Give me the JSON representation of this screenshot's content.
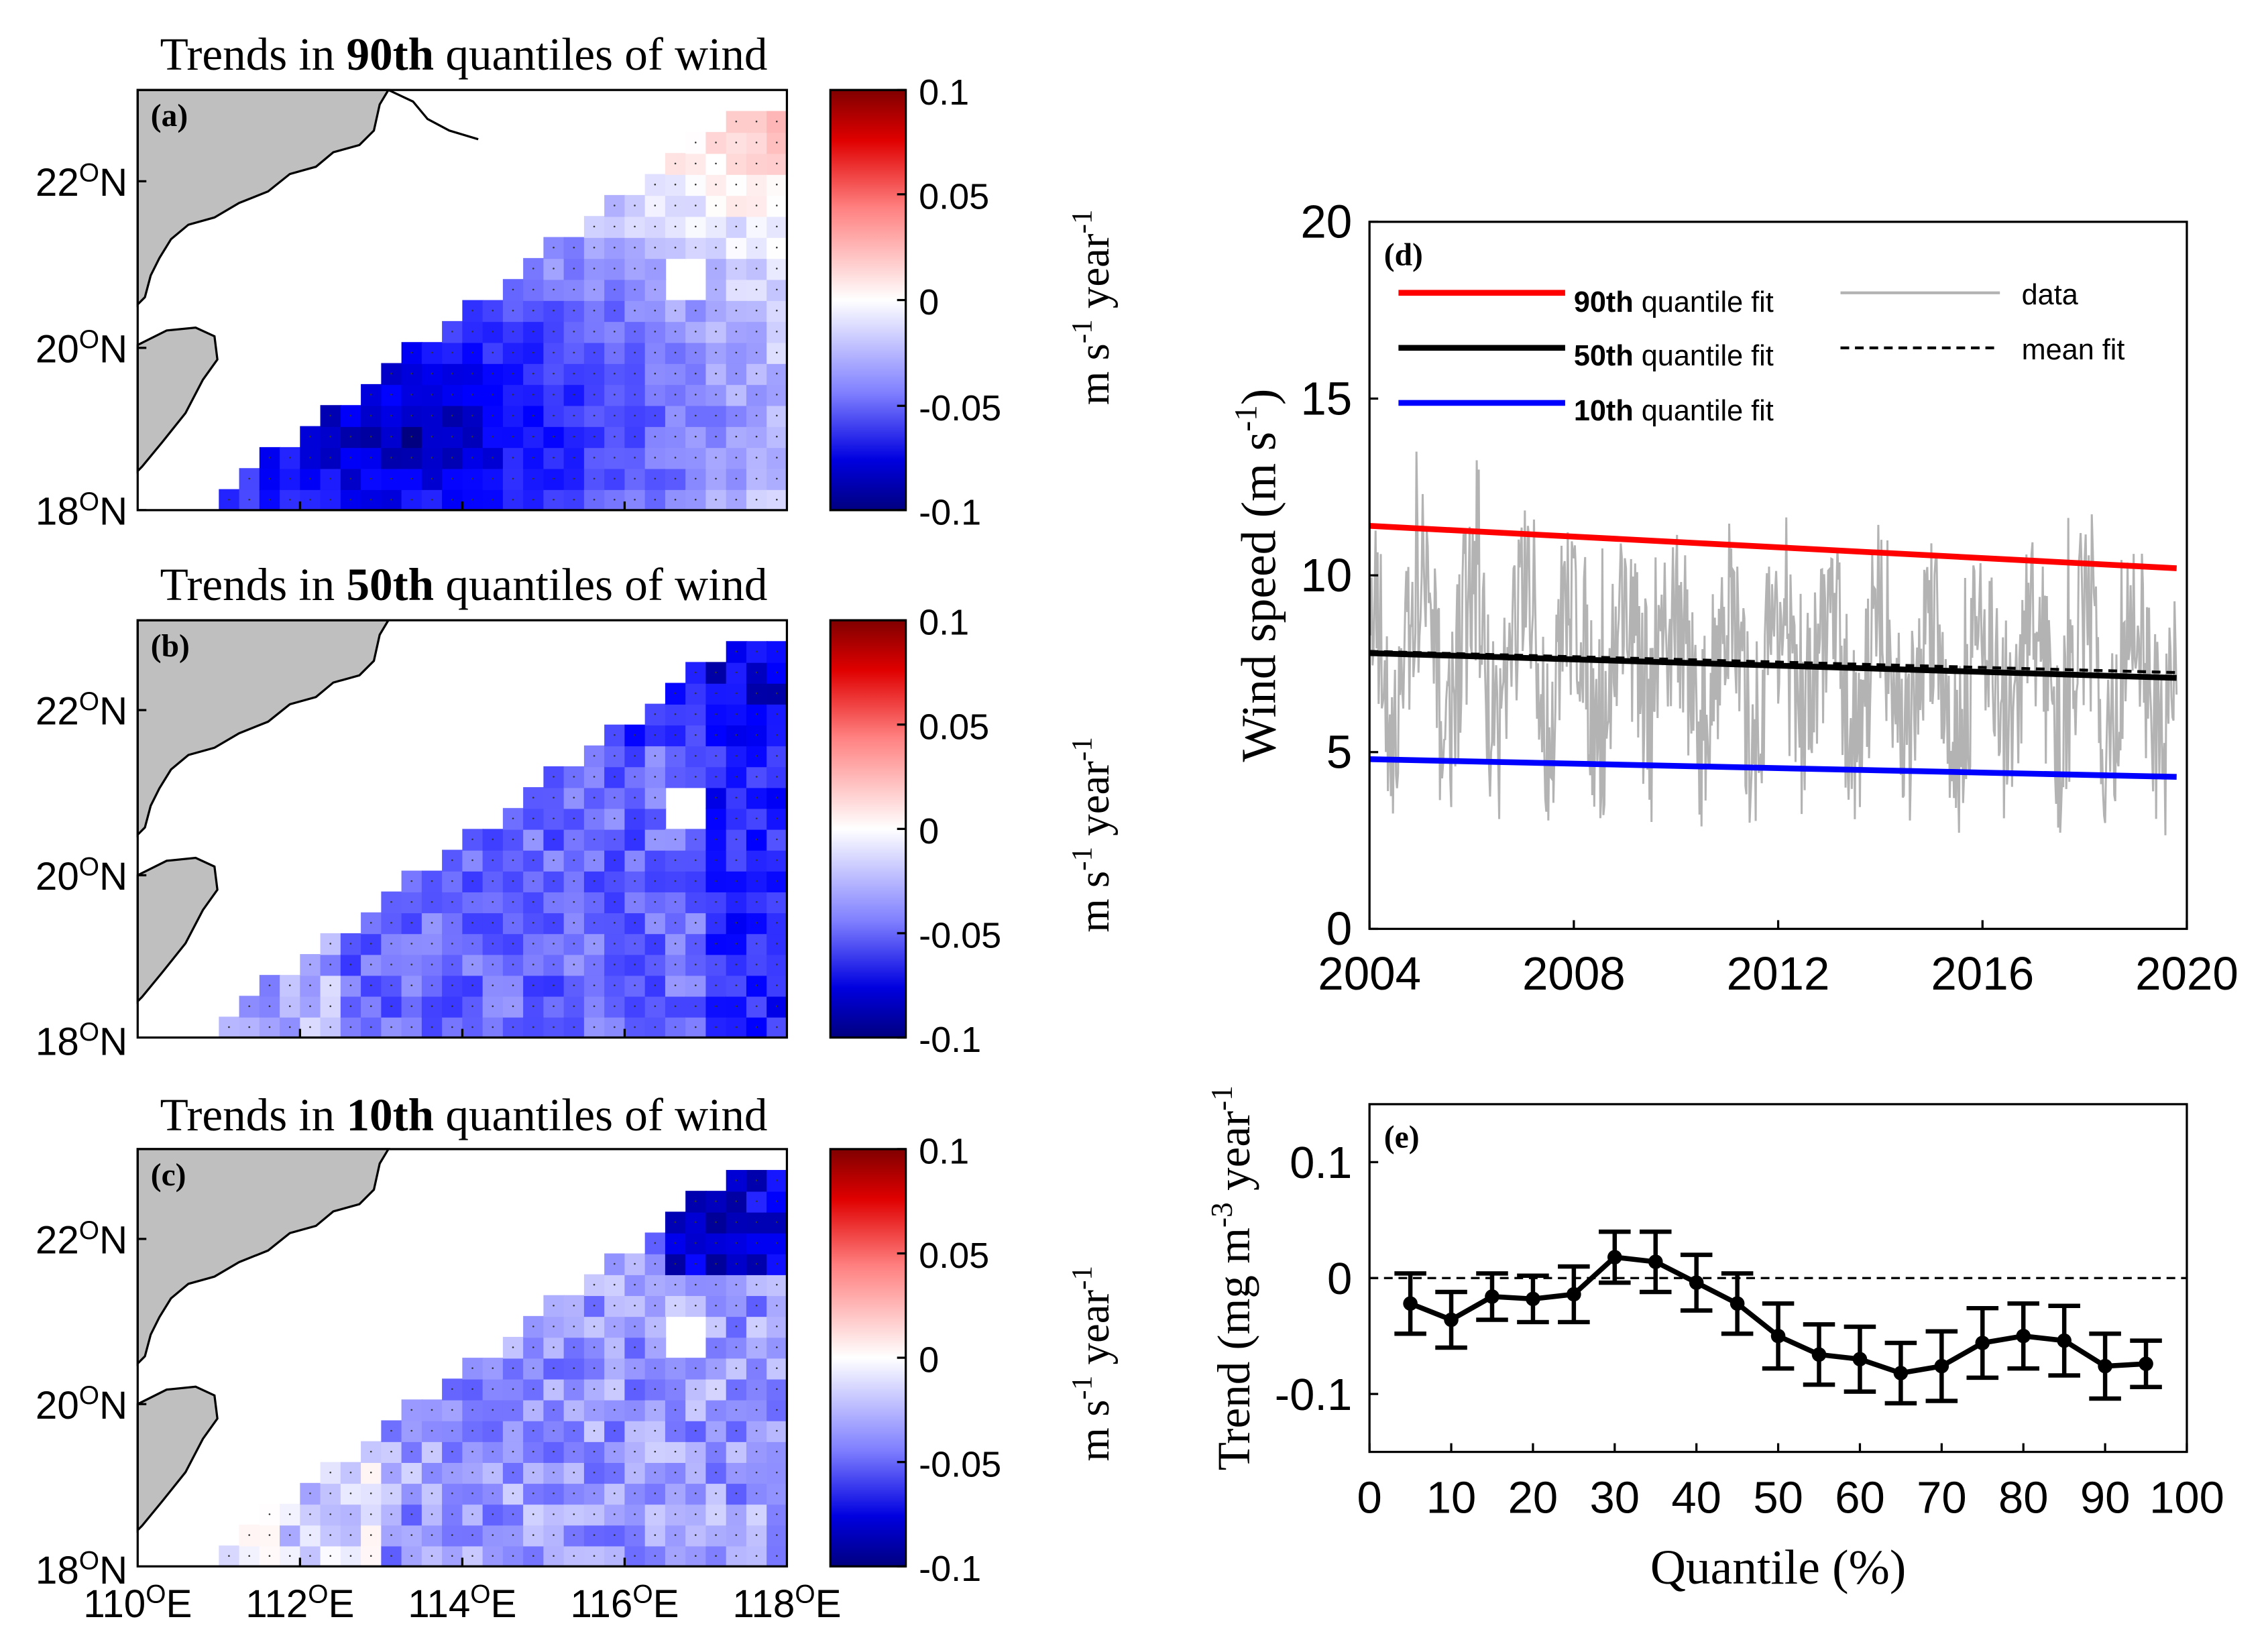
{
  "chart_data": [
    {
      "panel": "(a)",
      "type": "heatmap",
      "title": "Trends in 90th quantiles of wind",
      "title_parts": [
        "Trends in ",
        "90th",
        " quantiles of wind"
      ],
      "xlabel": "",
      "ylabel": "",
      "xlim": [
        110,
        118
      ],
      "ylim": [
        18,
        23
      ],
      "yticks": [
        {
          "value": 22,
          "label": "22",
          "suffix": "N"
        },
        {
          "value": 20,
          "label": "20",
          "suffix": "N"
        },
        {
          "value": 18,
          "label": "18",
          "suffix": "N"
        }
      ],
      "quantile": 90,
      "colorbar": {
        "ticks": [
          "0.1",
          "0.05",
          "0",
          "-0.05",
          "-0.1"
        ],
        "range": [
          -0.1,
          0.1
        ],
        "label_parts": [
          "m s",
          "-1",
          " year",
          "-1"
        ]
      }
    },
    {
      "panel": "(b)",
      "type": "heatmap",
      "title": "Trends in 50th quantiles of wind",
      "title_parts": [
        "Trends in ",
        "50th",
        " quantiles of wind"
      ],
      "xlabel": "",
      "ylabel": "",
      "xlim": [
        110,
        118
      ],
      "ylim": [
        18,
        23
      ],
      "yticks": [
        {
          "value": 22,
          "label": "22",
          "suffix": "N"
        },
        {
          "value": 20,
          "label": "20",
          "suffix": "N"
        },
        {
          "value": 18,
          "label": "18",
          "suffix": "N"
        }
      ],
      "quantile": 50,
      "colorbar": {
        "ticks": [
          "0.1",
          "0.05",
          "0",
          "-0.05",
          "-0.1"
        ],
        "range": [
          -0.1,
          0.1
        ],
        "label_parts": [
          "m s",
          "-1",
          " year",
          "-1"
        ]
      }
    },
    {
      "panel": "(c)",
      "type": "heatmap",
      "title": "Trends in 10th quantiles of wind",
      "title_parts": [
        "Trends in ",
        "10th",
        " quantiles of wind"
      ],
      "xlabel": "",
      "ylabel": "",
      "xlim": [
        110,
        118
      ],
      "ylim": [
        18,
        23
      ],
      "yticks": [
        {
          "value": 22,
          "label": "22",
          "suffix": "N"
        },
        {
          "value": 20,
          "label": "20",
          "suffix": "N"
        },
        {
          "value": 18,
          "label": "18",
          "suffix": "N"
        }
      ],
      "xticks": [
        {
          "value": 110,
          "label": "110",
          "suffix": "E"
        },
        {
          "value": 112,
          "label": "112",
          "suffix": "E"
        },
        {
          "value": 114,
          "label": "114",
          "suffix": "E"
        },
        {
          "value": 116,
          "label": "116",
          "suffix": "E"
        },
        {
          "value": 118,
          "label": "118",
          "suffix": "E"
        }
      ],
      "quantile": 10,
      "colorbar": {
        "ticks": [
          "0.1",
          "0.05",
          "0",
          "-0.05",
          "-0.1"
        ],
        "range": [
          -0.1,
          0.1
        ],
        "label_parts": [
          "m s",
          "-1",
          " year",
          "-1"
        ]
      }
    },
    {
      "panel": "(d)",
      "type": "line",
      "title": "",
      "xlim": [
        2004,
        2020
      ],
      "ylim": [
        0,
        20
      ],
      "xticks": [
        "2004",
        "2008",
        "2012",
        "2016",
        "2020"
      ],
      "yticks": [
        "0",
        "5",
        "10",
        "15",
        "20"
      ],
      "ylabel_parts": [
        "Wind speed (m s",
        "-1",
        ")"
      ],
      "legend": {
        "q90": "quantile fit",
        "q90_prefix": "90th",
        "q50": "quantile fit",
        "q50_prefix": "50th",
        "q10": "quantile fit",
        "q10_prefix": "10th",
        "data": "data",
        "mean": "mean fit"
      },
      "series": [
        {
          "name": "90th quantile fit",
          "color": "#ff0000",
          "x": [
            2004,
            2019.8
          ],
          "values": [
            11.4,
            10.2
          ]
        },
        {
          "name": "50th quantile fit",
          "color": "#000000",
          "x": [
            2004,
            2019.8
          ],
          "values": [
            7.8,
            7.1
          ]
        },
        {
          "name": "10th quantile fit",
          "color": "#0000ff",
          "x": [
            2004,
            2019.8
          ],
          "values": [
            4.8,
            4.3
          ]
        },
        {
          "name": "mean fit",
          "color": "#000000",
          "dash": true,
          "x": [
            2004,
            2019.8
          ],
          "values": [
            7.85,
            7.25
          ]
        },
        {
          "name": "data",
          "color": "#b3b3b3",
          "description": "daily wind speed, range approx 2-13.5 m s-1"
        }
      ]
    },
    {
      "panel": "(e)",
      "type": "line",
      "title": "",
      "xlim": [
        0,
        100
      ],
      "ylim": [
        -0.15,
        0.15
      ],
      "xticks": [
        "0",
        "10",
        "20",
        "30",
        "40",
        "50",
        "60",
        "70",
        "80",
        "90",
        "100"
      ],
      "yticks": [
        "0.1",
        "0",
        "-0.1"
      ],
      "xlabel": "Quantile (%)",
      "ylabel_parts": [
        "Trend (mg m",
        "-3",
        " year",
        "-1",
        ")"
      ],
      "series": [
        {
          "name": "trend",
          "x": [
            5,
            10,
            15,
            20,
            25,
            30,
            35,
            40,
            45,
            50,
            55,
            60,
            65,
            70,
            75,
            80,
            85,
            90,
            95
          ],
          "values": [
            -0.022,
            -0.036,
            -0.016,
            -0.018,
            -0.014,
            0.018,
            0.014,
            -0.004,
            -0.022,
            -0.05,
            -0.066,
            -0.07,
            -0.082,
            -0.076,
            -0.056,
            -0.05,
            -0.054,
            -0.076,
            -0.074
          ],
          "err": [
            0.026,
            0.024,
            0.02,
            0.02,
            0.024,
            0.022,
            0.026,
            0.024,
            0.026,
            0.028,
            0.026,
            0.028,
            0.026,
            0.03,
            0.03,
            0.028,
            0.03,
            0.028,
            0.02
          ]
        }
      ],
      "zero_line": true
    }
  ],
  "labels": {
    "deg": "O"
  }
}
